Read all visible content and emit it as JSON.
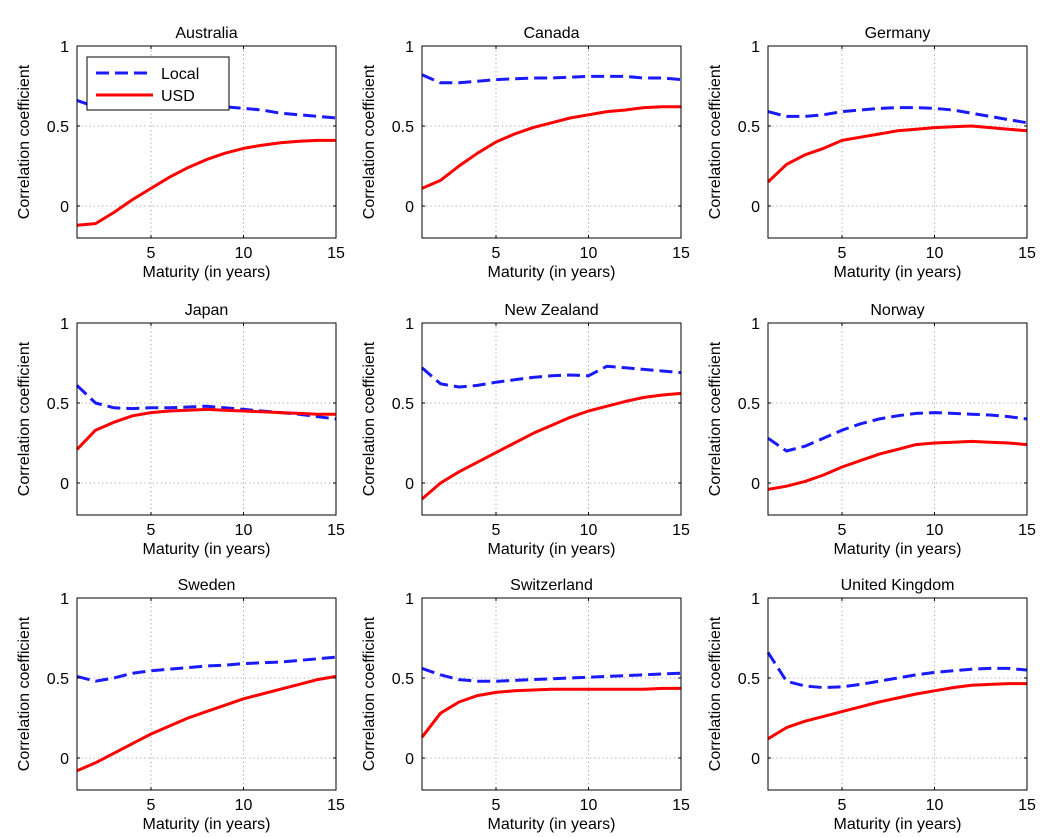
{
  "figure": {
    "legend": {
      "entries": [
        "Local",
        "USD"
      ],
      "location": "top-left of first panel"
    },
    "colors": {
      "Local": "#1a1aff",
      "USD": "#ff0000",
      "grid": "#8c8c8c"
    }
  },
  "chart_data": [
    {
      "type": "line",
      "title": "Australia",
      "xlabel": "Maturity (in years)",
      "ylabel": "Correlation coefficient",
      "xlim": [
        1,
        15
      ],
      "ylim": [
        -0.2,
        1
      ],
      "xticks": [
        5,
        10,
        15
      ],
      "yticks": [
        0,
        0.5,
        1
      ],
      "grid": true,
      "x": [
        1,
        2,
        3,
        4,
        5,
        6,
        7,
        8,
        9,
        10,
        11,
        12,
        13,
        14,
        15
      ],
      "series": [
        {
          "name": "Local",
          "style": "dashed",
          "values": [
            0.66,
            0.62,
            0.63,
            0.64,
            0.645,
            0.64,
            0.635,
            0.63,
            0.62,
            0.61,
            0.6,
            0.58,
            0.57,
            0.56,
            0.55
          ]
        },
        {
          "name": "USD",
          "style": "solid",
          "values": [
            -0.12,
            -0.11,
            -0.04,
            0.04,
            0.11,
            0.18,
            0.24,
            0.29,
            0.33,
            0.36,
            0.38,
            0.395,
            0.405,
            0.41,
            0.41
          ]
        }
      ]
    },
    {
      "type": "line",
      "title": "Canada",
      "xlabel": "Maturity (in years)",
      "ylabel": "Correlation coefficient",
      "xlim": [
        1,
        15
      ],
      "ylim": [
        -0.2,
        1
      ],
      "xticks": [
        5,
        10,
        15
      ],
      "yticks": [
        0,
        0.5,
        1
      ],
      "grid": true,
      "x": [
        1,
        2,
        3,
        4,
        5,
        6,
        7,
        8,
        9,
        10,
        11,
        12,
        13,
        14,
        15
      ],
      "series": [
        {
          "name": "Local",
          "style": "dashed",
          "values": [
            0.82,
            0.77,
            0.77,
            0.78,
            0.79,
            0.795,
            0.8,
            0.8,
            0.805,
            0.81,
            0.81,
            0.81,
            0.8,
            0.8,
            0.79
          ]
        },
        {
          "name": "USD",
          "style": "solid",
          "values": [
            0.11,
            0.16,
            0.25,
            0.33,
            0.4,
            0.45,
            0.49,
            0.52,
            0.55,
            0.57,
            0.59,
            0.6,
            0.615,
            0.62,
            0.62
          ]
        }
      ]
    },
    {
      "type": "line",
      "title": "Germany",
      "xlabel": "Maturity (in years)",
      "ylabel": "Correlation coefficient",
      "xlim": [
        1,
        15
      ],
      "ylim": [
        -0.2,
        1
      ],
      "xticks": [
        5,
        10,
        15
      ],
      "yticks": [
        0,
        0.5,
        1
      ],
      "grid": true,
      "x": [
        1,
        2,
        3,
        4,
        5,
        6,
        7,
        8,
        9,
        10,
        11,
        12,
        13,
        14,
        15
      ],
      "series": [
        {
          "name": "Local",
          "style": "dashed",
          "values": [
            0.59,
            0.56,
            0.56,
            0.57,
            0.59,
            0.6,
            0.61,
            0.615,
            0.615,
            0.61,
            0.6,
            0.58,
            0.56,
            0.54,
            0.52
          ]
        },
        {
          "name": "USD",
          "style": "solid",
          "values": [
            0.15,
            0.26,
            0.32,
            0.36,
            0.41,
            0.43,
            0.45,
            0.47,
            0.48,
            0.49,
            0.495,
            0.5,
            0.49,
            0.48,
            0.47
          ]
        }
      ]
    },
    {
      "type": "line",
      "title": "Japan",
      "xlabel": "Maturity (in years)",
      "ylabel": "Correlation coefficient",
      "xlim": [
        1,
        15
      ],
      "ylim": [
        -0.2,
        1
      ],
      "xticks": [
        5,
        10,
        15
      ],
      "yticks": [
        0,
        0.5,
        1
      ],
      "grid": true,
      "x": [
        1,
        2,
        3,
        4,
        5,
        6,
        7,
        8,
        9,
        10,
        11,
        12,
        13,
        14,
        15
      ],
      "series": [
        {
          "name": "Local",
          "style": "dashed",
          "values": [
            0.61,
            0.5,
            0.47,
            0.465,
            0.47,
            0.47,
            0.475,
            0.48,
            0.47,
            0.46,
            0.45,
            0.44,
            0.43,
            0.415,
            0.4
          ]
        },
        {
          "name": "USD",
          "style": "solid",
          "values": [
            0.21,
            0.33,
            0.38,
            0.42,
            0.44,
            0.45,
            0.455,
            0.46,
            0.455,
            0.45,
            0.445,
            0.44,
            0.435,
            0.43,
            0.43
          ]
        }
      ]
    },
    {
      "type": "line",
      "title": "New Zealand",
      "xlabel": "Maturity (in years)",
      "ylabel": "Correlation coefficient",
      "xlim": [
        1,
        15
      ],
      "ylim": [
        -0.2,
        1
      ],
      "xticks": [
        5,
        10,
        15
      ],
      "yticks": [
        0,
        0.5,
        1
      ],
      "grid": true,
      "x": [
        1,
        2,
        3,
        4,
        5,
        6,
        7,
        8,
        9,
        10,
        11,
        12,
        13,
        14,
        15
      ],
      "series": [
        {
          "name": "Local",
          "style": "dashed",
          "values": [
            0.72,
            0.62,
            0.6,
            0.61,
            0.63,
            0.645,
            0.66,
            0.67,
            0.675,
            0.67,
            0.73,
            0.72,
            0.71,
            0.7,
            0.69
          ]
        },
        {
          "name": "USD",
          "style": "solid",
          "values": [
            -0.1,
            0.0,
            0.07,
            0.13,
            0.19,
            0.25,
            0.31,
            0.36,
            0.41,
            0.45,
            0.48,
            0.51,
            0.535,
            0.55,
            0.56
          ]
        }
      ]
    },
    {
      "type": "line",
      "title": "Norway",
      "xlabel": "Maturity (in years)",
      "ylabel": "Correlation coefficient",
      "xlim": [
        1,
        15
      ],
      "ylim": [
        -0.2,
        1
      ],
      "xticks": [
        5,
        10,
        15
      ],
      "yticks": [
        0,
        0.5,
        1
      ],
      "grid": true,
      "x": [
        1,
        2,
        3,
        4,
        5,
        6,
        7,
        8,
        9,
        10,
        11,
        12,
        13,
        14,
        15
      ],
      "series": [
        {
          "name": "Local",
          "style": "dashed",
          "values": [
            0.28,
            0.2,
            0.23,
            0.28,
            0.33,
            0.37,
            0.4,
            0.42,
            0.435,
            0.44,
            0.435,
            0.43,
            0.425,
            0.415,
            0.4
          ]
        },
        {
          "name": "USD",
          "style": "solid",
          "values": [
            -0.04,
            -0.02,
            0.01,
            0.05,
            0.1,
            0.14,
            0.18,
            0.21,
            0.24,
            0.25,
            0.255,
            0.26,
            0.255,
            0.25,
            0.24
          ]
        }
      ]
    },
    {
      "type": "line",
      "title": "Sweden",
      "xlabel": "Maturity (in years)",
      "ylabel": "Correlation coefficient",
      "xlim": [
        1,
        15
      ],
      "ylim": [
        -0.2,
        1
      ],
      "xticks": [
        5,
        10,
        15
      ],
      "yticks": [
        0,
        0.5,
        1
      ],
      "grid": true,
      "x": [
        1,
        2,
        3,
        4,
        5,
        6,
        7,
        8,
        9,
        10,
        11,
        12,
        13,
        14,
        15
      ],
      "series": [
        {
          "name": "Local",
          "style": "dashed",
          "values": [
            0.51,
            0.48,
            0.5,
            0.53,
            0.545,
            0.555,
            0.565,
            0.575,
            0.58,
            0.59,
            0.595,
            0.6,
            0.61,
            0.62,
            0.63
          ]
        },
        {
          "name": "USD",
          "style": "solid",
          "values": [
            -0.08,
            -0.03,
            0.03,
            0.09,
            0.15,
            0.2,
            0.25,
            0.29,
            0.33,
            0.37,
            0.4,
            0.43,
            0.46,
            0.49,
            0.51
          ]
        }
      ]
    },
    {
      "type": "line",
      "title": "Switzerland",
      "xlabel": "Maturity (in years)",
      "ylabel": "Correlation coefficient",
      "xlim": [
        1,
        15
      ],
      "ylim": [
        -0.2,
        1
      ],
      "xticks": [
        5,
        10,
        15
      ],
      "yticks": [
        0,
        0.5,
        1
      ],
      "grid": true,
      "x": [
        1,
        2,
        3,
        4,
        5,
        6,
        7,
        8,
        9,
        10,
        11,
        12,
        13,
        14,
        15
      ],
      "series": [
        {
          "name": "Local",
          "style": "dashed",
          "values": [
            0.56,
            0.52,
            0.49,
            0.48,
            0.48,
            0.485,
            0.49,
            0.495,
            0.5,
            0.505,
            0.51,
            0.515,
            0.52,
            0.525,
            0.53
          ]
        },
        {
          "name": "USD",
          "style": "solid",
          "values": [
            0.13,
            0.28,
            0.35,
            0.39,
            0.41,
            0.42,
            0.425,
            0.43,
            0.43,
            0.43,
            0.43,
            0.43,
            0.43,
            0.435,
            0.435
          ]
        }
      ]
    },
    {
      "type": "line",
      "title": "United Kingdom",
      "xlabel": "Maturity (in years)",
      "ylabel": "Correlation coefficient",
      "xlim": [
        1,
        15
      ],
      "ylim": [
        -0.2,
        1
      ],
      "xticks": [
        5,
        10,
        15
      ],
      "yticks": [
        0,
        0.5,
        1
      ],
      "grid": true,
      "x": [
        1,
        2,
        3,
        4,
        5,
        6,
        7,
        8,
        9,
        10,
        11,
        12,
        13,
        14,
        15
      ],
      "series": [
        {
          "name": "Local",
          "style": "dashed",
          "values": [
            0.66,
            0.48,
            0.45,
            0.44,
            0.445,
            0.46,
            0.48,
            0.5,
            0.52,
            0.535,
            0.545,
            0.555,
            0.56,
            0.56,
            0.55
          ]
        },
        {
          "name": "USD",
          "style": "solid",
          "values": [
            0.12,
            0.19,
            0.23,
            0.26,
            0.29,
            0.32,
            0.35,
            0.375,
            0.4,
            0.42,
            0.44,
            0.455,
            0.46,
            0.465,
            0.465
          ]
        }
      ]
    }
  ]
}
